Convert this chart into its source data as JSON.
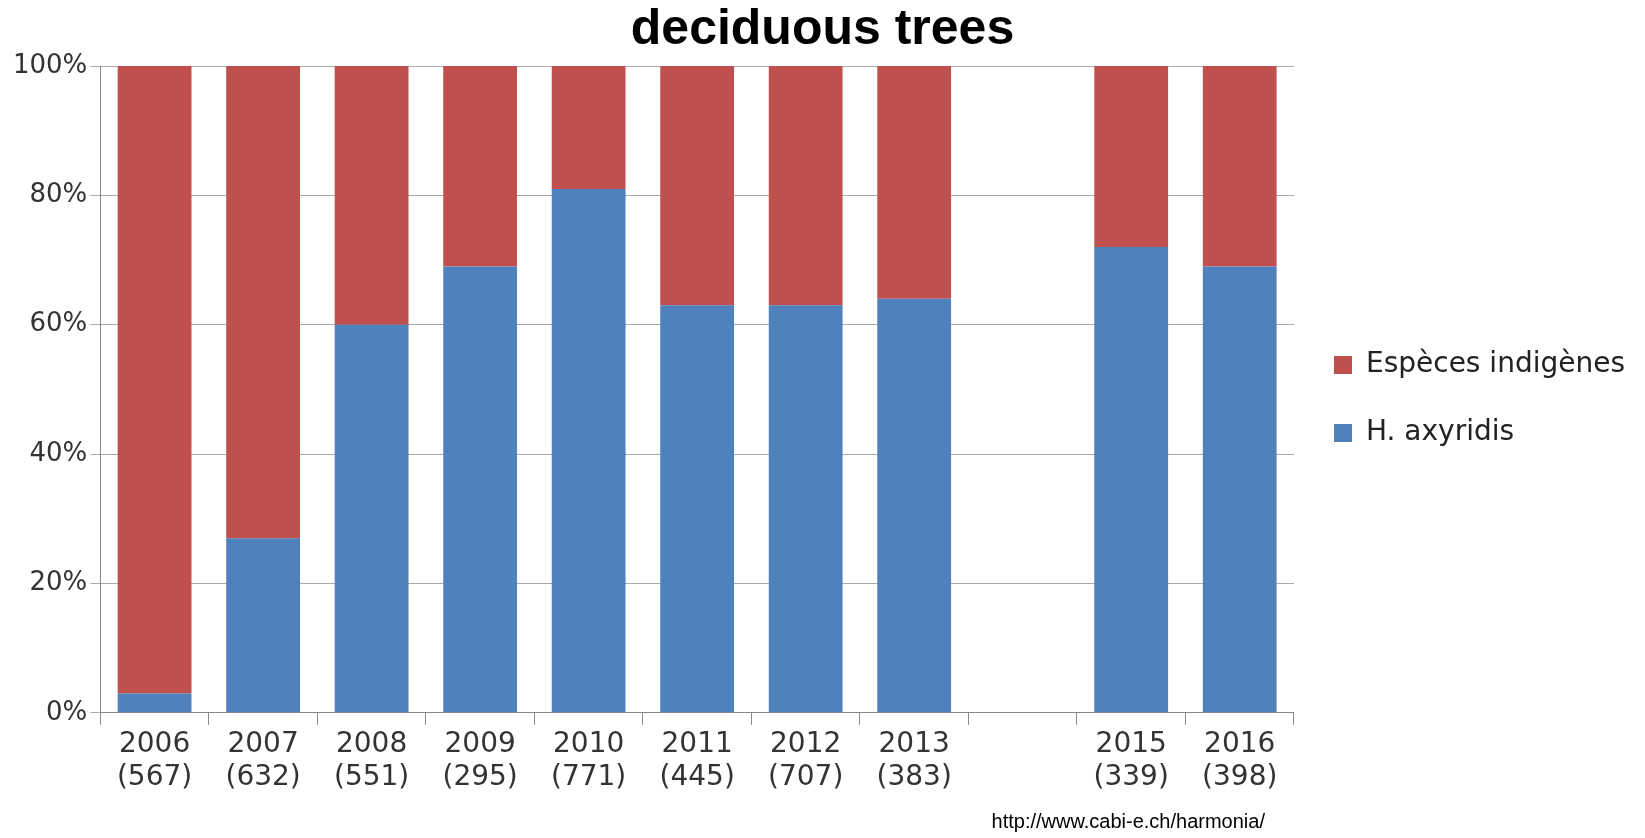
{
  "chart_data": {
    "type": "bar",
    "title": "deciduous trees",
    "stacked": true,
    "categories": [
      "2006\n(567)",
      "2007\n(632)",
      "2008\n(551)",
      "2009\n(295)",
      "2010\n(771)",
      "2011\n(445)",
      "2012\n(707)",
      "2013\n(383)",
      null,
      "2015\n(339)",
      "2016\n(398)"
    ],
    "series": [
      {
        "name": "H. axyridis",
        "color": "#4f81bd",
        "values": [
          3,
          27,
          60,
          69,
          81,
          63,
          63,
          64,
          null,
          72,
          69
        ]
      },
      {
        "name": "Espèces indigènes",
        "color": "#c0504d",
        "values": [
          97,
          73,
          40,
          31,
          19,
          37,
          37,
          36,
          null,
          28,
          31
        ]
      }
    ],
    "ylim": [
      0,
      100
    ],
    "yticks": [
      {
        "value": 0,
        "label": "0%"
      },
      {
        "value": 20,
        "label": "20%"
      },
      {
        "value": 40,
        "label": "40%"
      },
      {
        "value": 60,
        "label": "60%"
      },
      {
        "value": 80,
        "label": "80%"
      },
      {
        "value": 100,
        "label": "100%"
      }
    ],
    "grid": "y",
    "legend": "right",
    "annotations": [
      "http://www.cabi-e.ch/harmonia/"
    ]
  }
}
